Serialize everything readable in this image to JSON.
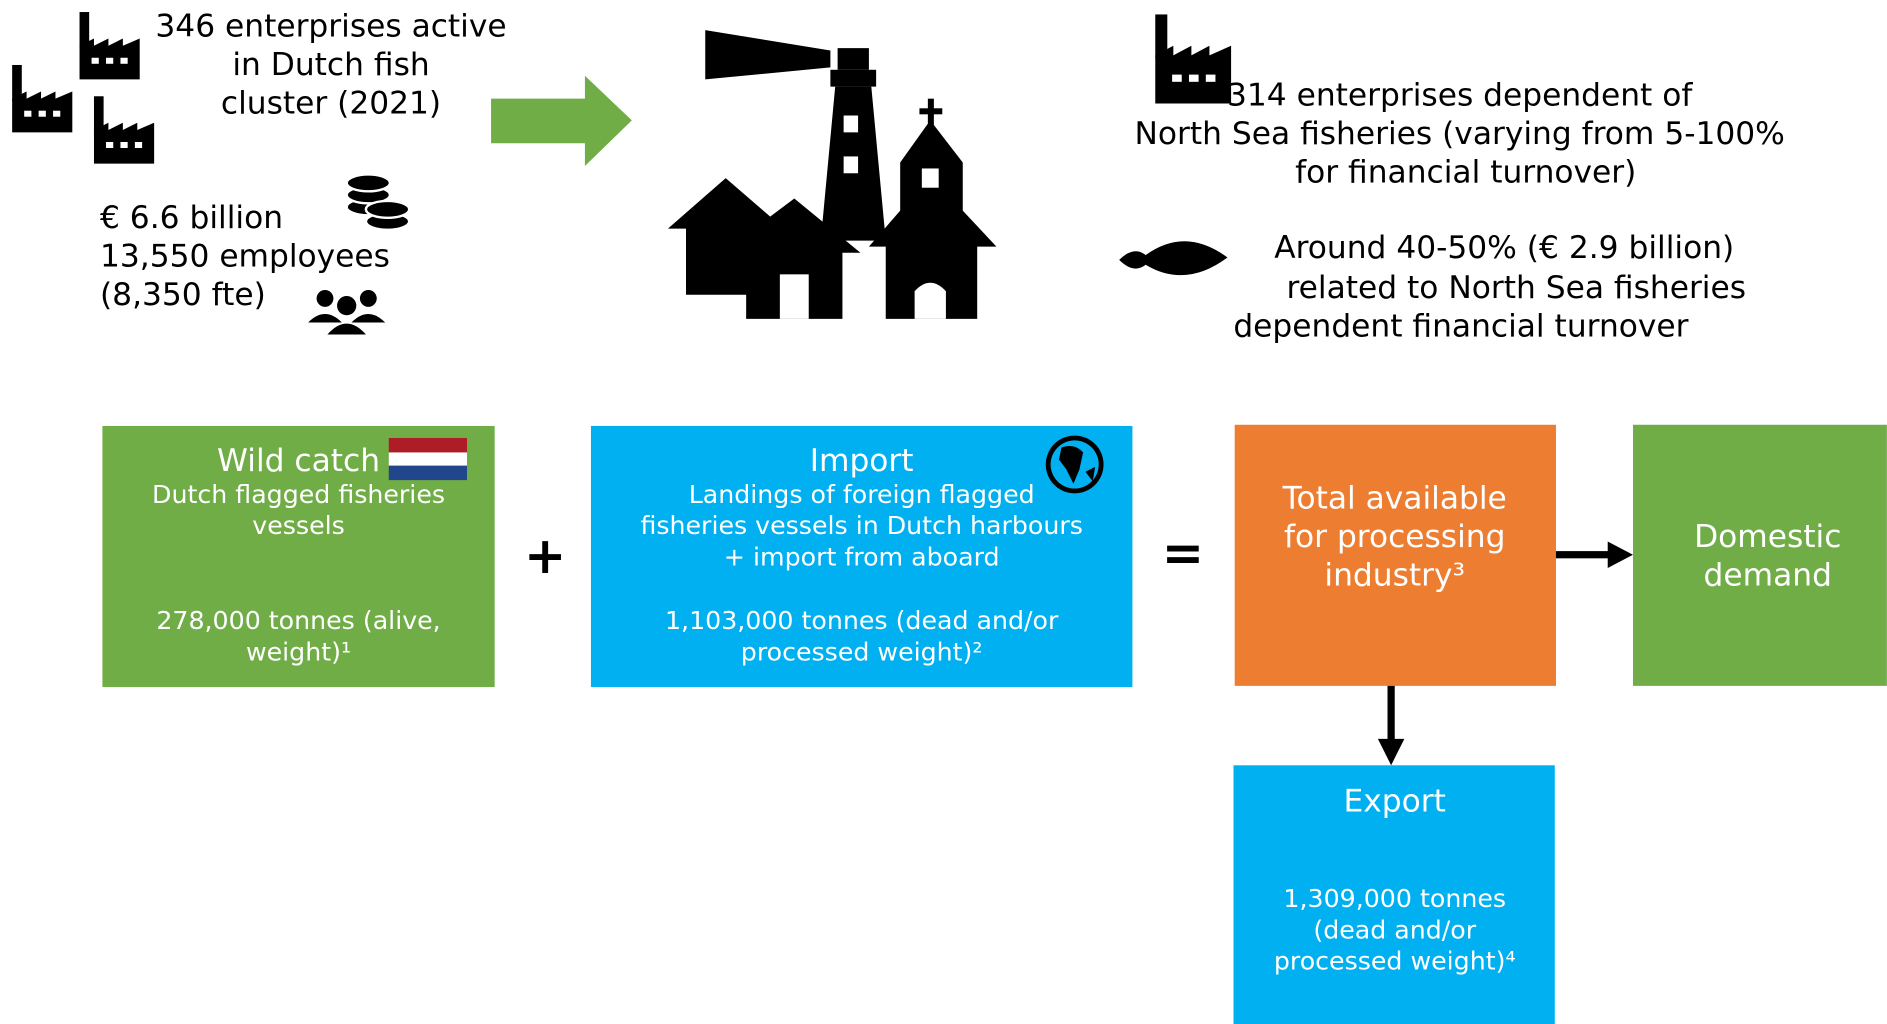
{
  "top_left": {
    "enterprises": [
      "346 enterprises active",
      "in Dutch fish",
      "cluster (2021)"
    ],
    "stats": [
      "€ 6.6 billion",
      "13,550 employees",
      "(8,350 fte)"
    ]
  },
  "top_right": {
    "enterprises": [
      "314 enterprises dependent of",
      "North Sea fisheries (varying from 5-100%",
      "for financial turnover)"
    ],
    "turnover": [
      "Around 40-50% (€ 2.9 billion)",
      "related to North Sea fisheries",
      "dependent financial turnover"
    ]
  },
  "boxes": [
    {
      "title": "Wild catch",
      "description": [
        "Dutch flagged fisheries",
        "vessels"
      ],
      "amount": [
        "278,000 tonnes (alive,",
        "weight)¹"
      ]
    },
    {
      "title": "Import",
      "description": [
        "Landings of foreign flagged",
        "fisheries vessels in Dutch harbours",
        "+ import from aboard"
      ],
      "amount": [
        "1,103,000 tonnes (dead and/or",
        "processed weight)²"
      ]
    },
    {
      "title": [
        "Total available",
        "for processing",
        "industry³"
      ]
    },
    {
      "title": [
        "Domestic",
        "demand"
      ]
    },
    {
      "title": "Export",
      "amount": [
        "1,309,000 tonnes",
        "(dead and/or",
        "processed weight)⁴"
      ]
    }
  ],
  "operators": [
    "+",
    "="
  ]
}
